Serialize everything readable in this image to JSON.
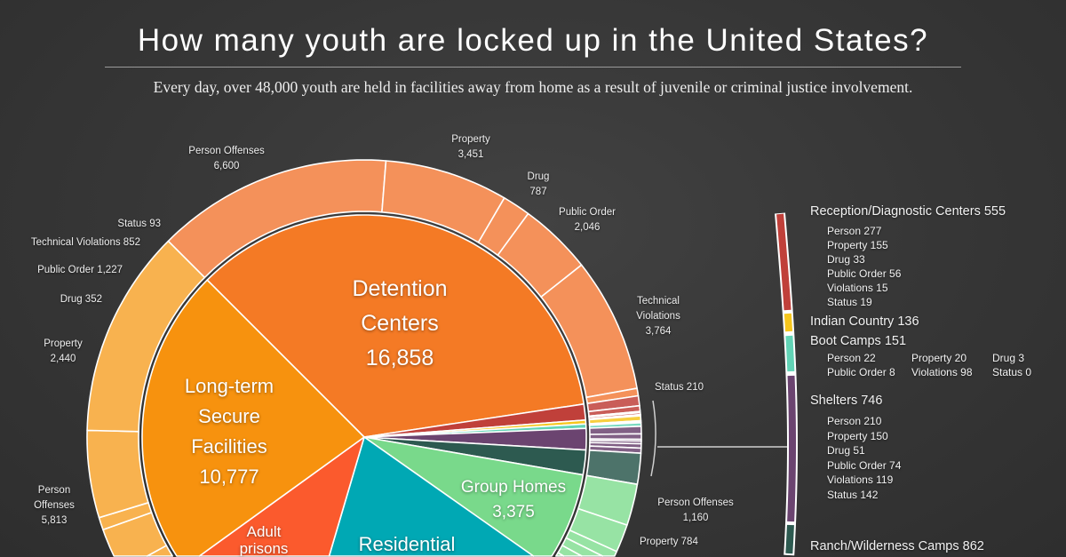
{
  "title": "How many youth are locked up in the United States?",
  "subtitle": "Every day, over 48,000 youth are held in facilities away from home as a result of juvenile or criminal justice involvement.",
  "chart_data": {
    "type": "sunburst",
    "total_stated": "over 48,000",
    "facilities": [
      {
        "name": "Detention Centers",
        "value": 16858,
        "value_label": "16,858",
        "color": "#f47a25",
        "outer_color": "#f4915a",
        "breakdown": [
          {
            "label": "Person Offenses",
            "value": 6600,
            "value_label": "6,600"
          },
          {
            "label": "Property",
            "value": 3451,
            "value_label": "3,451"
          },
          {
            "label": "Drug",
            "value": 787,
            "value_label": "787"
          },
          {
            "label": "Public Order",
            "value": 2046,
            "value_label": "2,046"
          },
          {
            "label": "Technical Violations",
            "value": 3764,
            "value_label": "3,764"
          },
          {
            "label": "Status",
            "value": 210,
            "value_label": "210"
          }
        ]
      },
      {
        "name": "Reception/Diagnostic Centers",
        "value": 555,
        "value_label": "555",
        "color": "#c0403a",
        "breakdown": [
          {
            "label": "Person",
            "value": 277
          },
          {
            "label": "Property",
            "value": 155
          },
          {
            "label": "Drug",
            "value": 33
          },
          {
            "label": "Public Order",
            "value": 56
          },
          {
            "label": "Violations",
            "value": 15
          },
          {
            "label": "Status",
            "value": 19
          }
        ]
      },
      {
        "name": "Indian Country",
        "value": 136,
        "value_label": "136",
        "color": "#f6c61c",
        "breakdown": []
      },
      {
        "name": "Boot Camps",
        "value": 151,
        "value_label": "151",
        "color": "#62d4b6",
        "breakdown": [
          {
            "label": "Person",
            "value": 22
          },
          {
            "label": "Property",
            "value": 20
          },
          {
            "label": "Drug",
            "value": 3
          },
          {
            "label": "Public Order",
            "value": 8
          },
          {
            "label": "Violations",
            "value": 98
          },
          {
            "label": "Status",
            "value": 0
          }
        ]
      },
      {
        "name": "Shelters",
        "value": 746,
        "value_label": "746",
        "color": "#6b4470",
        "breakdown": [
          {
            "label": "Person",
            "value": 210
          },
          {
            "label": "Property",
            "value": 150
          },
          {
            "label": "Drug",
            "value": 51
          },
          {
            "label": "Public Order",
            "value": 74
          },
          {
            "label": "Violations",
            "value": 119
          },
          {
            "label": "Status",
            "value": 142
          }
        ]
      },
      {
        "name": "Ranch/Wilderness Camps",
        "value": 862,
        "value_label": "862",
        "color": "#2d5a50",
        "breakdown": []
      },
      {
        "name": "Group Homes",
        "value": 3375,
        "value_label": "3,375",
        "color": "#79d98b",
        "outer_color": "#97e3a4",
        "breakdown": [
          {
            "label": "Person Offenses",
            "value": 1160,
            "value_label": "1,160"
          },
          {
            "label": "Property",
            "value": 784,
            "value_label": "784"
          }
        ]
      },
      {
        "name": "Residential",
        "value": null,
        "color": "#00a8b4",
        "breakdown": []
      },
      {
        "name": "Adult prisons",
        "value": null,
        "color": "#fb5a2d",
        "breakdown": []
      },
      {
        "name": "Long-term Secure Facilities",
        "value": 10777,
        "value_label": "10,777",
        "color": "#f7920e",
        "outer_color": "#f8b24f",
        "breakdown": [
          {
            "label": "Person Offenses",
            "value": 5813,
            "value_label": "5,813"
          },
          {
            "label": "Property",
            "value": 2440,
            "value_label": "2,440"
          },
          {
            "label": "Drug",
            "value": 352,
            "value_label": "352"
          },
          {
            "label": "Public Order",
            "value": 1227,
            "value_label": "1,227"
          },
          {
            "label": "Technical Violations",
            "value": 852,
            "value_label": "852"
          },
          {
            "label": "Status",
            "value": 93,
            "value_label": "93"
          }
        ]
      }
    ],
    "inner_labels": {
      "detention": [
        "Detention",
        "Centers",
        "16,858"
      ],
      "ltsf": [
        "Long-term",
        "Secure",
        "Facilities",
        "10,777"
      ],
      "group_homes": [
        "Group Homes",
        "3,375"
      ],
      "adult": [
        "Adult",
        "prisons"
      ],
      "residential": "Residential"
    },
    "outer_labels": {
      "det_person": [
        "Person Offenses",
        "6,600"
      ],
      "det_property": [
        "Property",
        "3,451"
      ],
      "det_drug": [
        "Drug",
        "787"
      ],
      "det_public": [
        "Public Order",
        "2,046"
      ],
      "det_tech": [
        "Technical",
        "Violations",
        "3,764"
      ],
      "det_status": "Status 210",
      "lt_status": "Status 93",
      "lt_tech": "Technical Violations 852",
      "lt_public": "Public Order 1,227",
      "lt_drug": "Drug 352",
      "lt_property": [
        "Property",
        "2,440"
      ],
      "lt_person": [
        "Person",
        "Offenses",
        "5,813"
      ],
      "gh_person": [
        "Person Offenses",
        "1,160"
      ],
      "gh_property": "Property 784"
    },
    "legend": {
      "reception": {
        "title": "Reception/Diagnostic Centers 555",
        "items": [
          "Person 277",
          "Property 155",
          "Drug 33",
          "Public Order 56",
          "Violations 15",
          "Status 19"
        ]
      },
      "indian": {
        "title": "Indian Country 136"
      },
      "boot": {
        "title": "Boot Camps 151",
        "items": [
          "Person 22",
          "Property 20",
          "Drug 3",
          "Public Order 8",
          "Violations 98",
          "Status 0"
        ]
      },
      "shelters": {
        "title": "Shelters 746",
        "items": [
          "Person 210",
          "Property 150",
          "Drug 51",
          "Public Order 74",
          "Violations 119",
          "Status 142"
        ]
      },
      "ranch": {
        "title": "Ranch/Wilderness Camps 862"
      }
    }
  }
}
